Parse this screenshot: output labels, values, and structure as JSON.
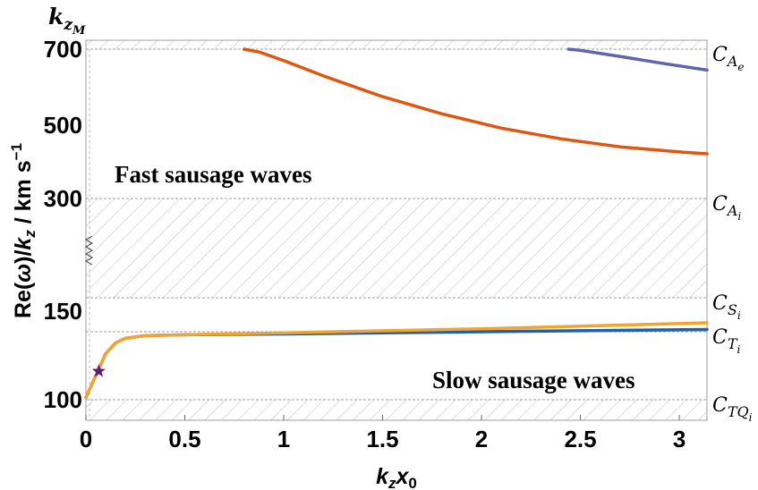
{
  "chart_data": {
    "type": "line",
    "xlabel": "k_z x_0",
    "ylabel": "Re(ω)/k_z / km s^-1",
    "xlim": [
      0,
      3.14
    ],
    "y_ticks": [
      100,
      150,
      300,
      500,
      700
    ],
    "x_ticks": [
      "0",
      "0.5",
      "1",
      "1.5",
      "2",
      "2.5",
      "3"
    ],
    "top_label": "k_zM",
    "y_break": true,
    "speeds": [
      {
        "label": "C_Ae",
        "value": 700
      },
      {
        "label": "C_Ai",
        "value": 300
      },
      {
        "label": "C_Si",
        "value": 165
      },
      {
        "label": "C_Ti",
        "value": 131
      },
      {
        "label": "C_TQi",
        "value": 100
      }
    ],
    "bands": [
      {
        "from": 700,
        "to": 725,
        "hatched": true
      },
      {
        "from": 165,
        "to": 300,
        "hatched": true
      },
      {
        "from": 94,
        "to": 100,
        "hatched": true
      }
    ],
    "annotations": [
      {
        "text": "Fast sausage waves"
      },
      {
        "text": "Slow sausage waves"
      }
    ],
    "series": [
      {
        "color": "#e0560e",
        "x": [
          0.8,
          0.88,
          1.0,
          1.2,
          1.5,
          1.8,
          2.1,
          2.4,
          2.7,
          3.0,
          3.14
        ],
        "y": [
          700,
          692,
          670,
          630,
          575,
          530,
          492,
          463,
          441,
          427,
          422
        ]
      },
      {
        "color": "#5e66aa",
        "x": [
          2.44,
          2.5,
          2.7,
          2.9,
          3.14
        ],
        "y": [
          700,
          697,
          681,
          664,
          645
        ]
      },
      {
        "color": "#1f5fb0",
        "x": [
          0.0,
          0.03,
          0.06,
          0.1,
          0.15,
          0.2,
          0.3,
          0.5,
          1.0,
          2.0,
          3.14
        ],
        "y": [
          101,
          107,
          113,
          121,
          126,
          128,
          129.2,
          129.6,
          130,
          131,
          132.5
        ]
      },
      {
        "color": "#f2a52e",
        "x": [
          0.0,
          0.03,
          0.06,
          0.1,
          0.15,
          0.2,
          0.3,
          0.5,
          1.0,
          2.0,
          3.14
        ],
        "y": [
          101,
          107,
          113,
          121,
          126,
          128,
          129.2,
          129.6,
          130.5,
          133,
          137
        ]
      }
    ],
    "markers": [
      {
        "x": 0.065,
        "y": 113,
        "shape": "star",
        "color": "#5a1a7a"
      }
    ]
  }
}
